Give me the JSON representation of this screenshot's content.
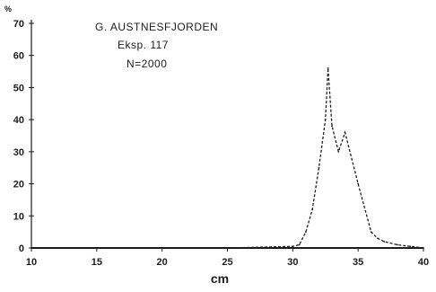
{
  "chart_data": {
    "type": "line",
    "title_lines": [
      "G. AUSTNESFJORDEN",
      "Eksp. 117",
      "N=2000"
    ],
    "xlabel": "cm",
    "ylabel": "%",
    "xlim": [
      10,
      40
    ],
    "ylim": [
      0,
      70
    ],
    "x_ticks": [
      "10",
      "15",
      "20",
      "25",
      "30",
      "35",
      "40"
    ],
    "y_ticks": [
      "0",
      "10",
      "20",
      "30",
      "40",
      "50",
      "60",
      "70"
    ],
    "grid": false,
    "legend": "none",
    "series": [
      {
        "x": [
          10,
          20,
          25,
          30,
          30.5,
          31,
          31.5,
          32,
          32.5,
          32.7,
          33,
          33.5,
          34,
          35,
          36,
          36.5,
          37,
          38,
          39,
          40
        ],
        "y": [
          0,
          0,
          0,
          0.5,
          1,
          5,
          12,
          25,
          40,
          56,
          38,
          30,
          36,
          20,
          5,
          3,
          2,
          1,
          0.5,
          0
        ]
      }
    ]
  }
}
